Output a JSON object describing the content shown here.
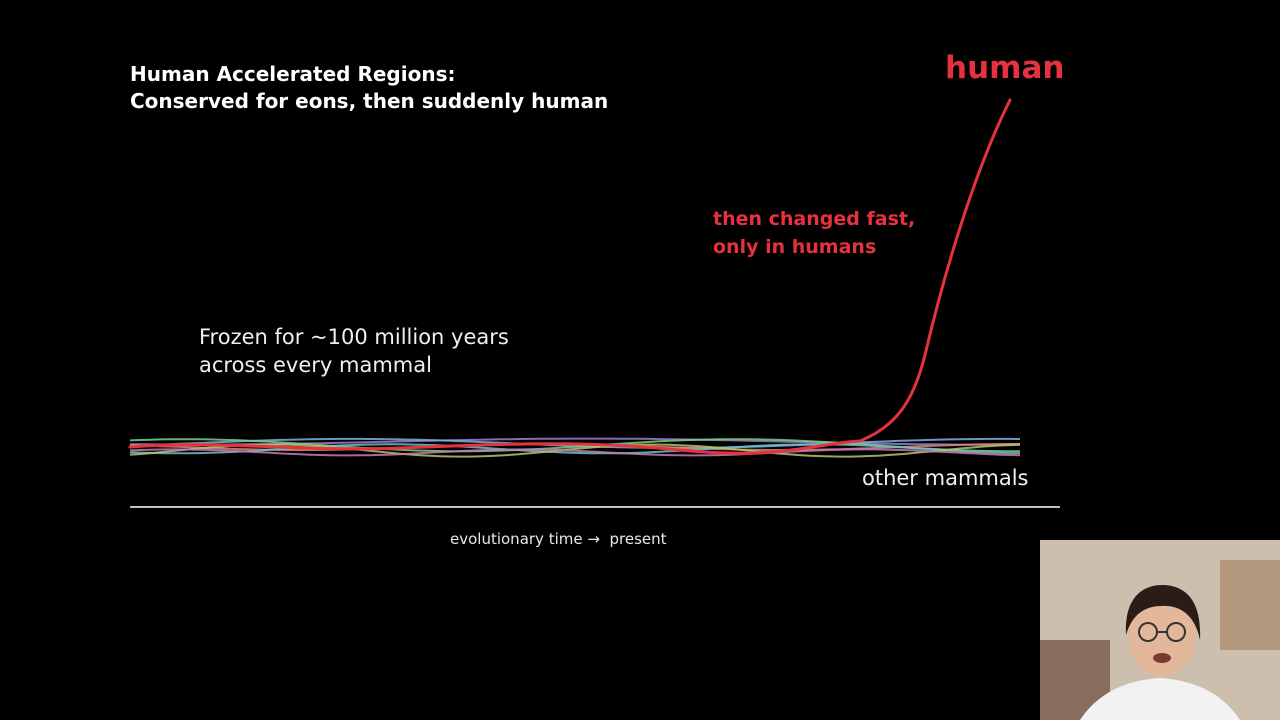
{
  "title": {
    "line1": "Human Accelerated Regions:",
    "line2": "Conserved for eons, then suddenly human"
  },
  "labels": {
    "human": "human",
    "note_line1": "then changed fast,",
    "note_line2": "only in humans",
    "frozen_line1": "Frozen for ~100 million years",
    "frozen_line2": "across every mammal",
    "other_mammals": "other mammals",
    "axis_left": "evolutionary time",
    "axis_arrow": "→",
    "axis_right": "present"
  },
  "colors": {
    "human": "#e6323e",
    "mammals": [
      "#9b7fd1",
      "#7fb0e0",
      "#7ccf8a",
      "#d98a7a",
      "#6fc1c9",
      "#b6c66a",
      "#c77bb8"
    ],
    "axis": "#ffffff"
  },
  "webcam": {
    "icon": "presenter-video"
  }
}
